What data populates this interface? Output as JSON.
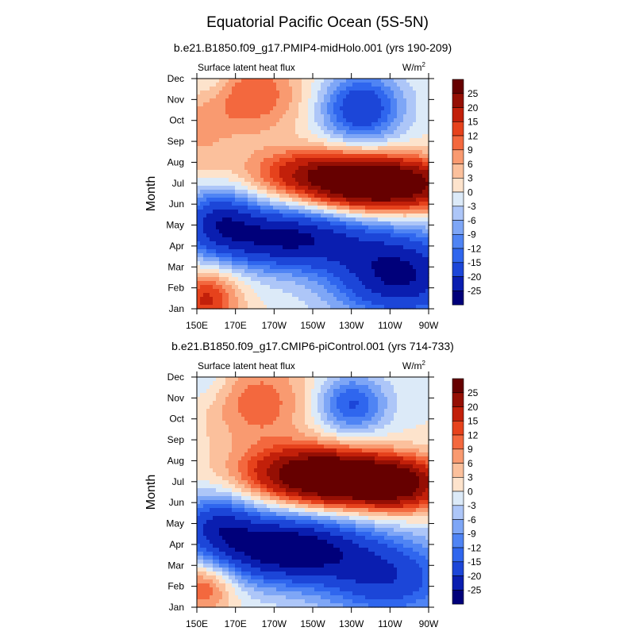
{
  "figure": {
    "title": "Equatorial Pacific Ocean (5S-5N)"
  },
  "chart_data": [
    {
      "type": "heatmap",
      "title": "b.e21.B1850.f09_g17.PMIP4-midHolo.001 (yrs 190-209)",
      "left_label": "Surface latent heat flux",
      "units_base": "W/m",
      "units_exp": "2",
      "ylabel": "Month",
      "xlabel": "",
      "x_ticks": [
        "150E",
        "170E",
        "170W",
        "150W",
        "130W",
        "110W",
        "90W"
      ],
      "x_lon": [
        150,
        170,
        190,
        210,
        230,
        250,
        270
      ],
      "xlim": [
        150,
        270
      ],
      "y_ticks": [
        "Jan",
        "Feb",
        "Mar",
        "Apr",
        "May",
        "Jun",
        "Jul",
        "Aug",
        "Sep",
        "Oct",
        "Nov",
        "Dec"
      ],
      "ylim": [
        1,
        12
      ],
      "colorbar_levels": [
        -25,
        -20,
        -15,
        -12,
        -9,
        -6,
        -3,
        0,
        3,
        6,
        9,
        12,
        15,
        20,
        25
      ],
      "colorbar_labels": [
        "25",
        "20",
        "15",
        "12",
        "9",
        "6",
        "3",
        "0",
        "-3",
        "-6",
        "-9",
        "-12",
        "-15",
        "-20",
        "-25"
      ],
      "features": [
        {
          "lon": 245,
          "mon": 6.9,
          "amp": 36,
          "slon": 28,
          "smon": 0.9
        },
        {
          "lon": 212,
          "mon": 7.6,
          "amp": 14,
          "slon": 26,
          "smon": 0.8
        },
        {
          "lon": 178,
          "mon": 11.2,
          "amp": 12,
          "slon": 20,
          "smon": 1.4
        },
        {
          "lon": 150,
          "mon": 9.5,
          "amp": 5,
          "slon": 12,
          "smon": 2.0
        },
        {
          "lon": 155,
          "mon": 1.5,
          "amp": 16,
          "slon": 12,
          "smon": 1.0
        },
        {
          "lon": 235,
          "mon": 10.6,
          "amp": -20,
          "slon": 15,
          "smon": 1.2
        },
        {
          "lon": 155,
          "mon": 12.0,
          "amp": -7,
          "slon": 10,
          "smon": 1.0
        },
        {
          "lon": 195,
          "mon": 4.4,
          "amp": -26,
          "slon": 30,
          "smon": 1.1
        },
        {
          "lon": 255,
          "mon": 2.6,
          "amp": -26,
          "slon": 25,
          "smon": 1.5
        },
        {
          "lon": 160,
          "mon": 5.4,
          "amp": -15,
          "slon": 14,
          "smon": 1.1
        }
      ]
    },
    {
      "type": "heatmap",
      "title": "b.e21.B1850.f09_g17.CMIP6-piControl.001 (yrs 714-733)",
      "left_label": "Surface latent heat flux",
      "units_base": "W/m",
      "units_exp": "2",
      "ylabel": "Month",
      "xlabel": "",
      "x_ticks": [
        "150E",
        "170E",
        "170W",
        "150W",
        "130W",
        "110W",
        "90W"
      ],
      "x_lon": [
        150,
        170,
        190,
        210,
        230,
        250,
        270
      ],
      "xlim": [
        150,
        270
      ],
      "y_ticks": [
        "Jan",
        "Feb",
        "Mar",
        "Apr",
        "May",
        "Jun",
        "Jul",
        "Aug",
        "Sep",
        "Oct",
        "Nov",
        "Dec"
      ],
      "ylim": [
        1,
        12
      ],
      "colorbar_levels": [
        -25,
        -20,
        -15,
        -12,
        -9,
        -6,
        -3,
        0,
        3,
        6,
        9,
        12,
        15,
        20,
        25
      ],
      "colorbar_labels": [
        "25",
        "20",
        "15",
        "12",
        "9",
        "6",
        "3",
        "0",
        "-3",
        "-6",
        "-9",
        "-12",
        "-15",
        "-20",
        "-25"
      ],
      "features": [
        {
          "lon": 232,
          "mon": 7.0,
          "amp": 34,
          "slon": 28,
          "smon": 0.9
        },
        {
          "lon": 205,
          "mon": 7.6,
          "amp": 16,
          "slon": 24,
          "smon": 0.9
        },
        {
          "lon": 258,
          "mon": 6.7,
          "amp": 10,
          "slon": 14,
          "smon": 0.9
        },
        {
          "lon": 182,
          "mon": 10.8,
          "amp": 11,
          "slon": 20,
          "smon": 1.5
        },
        {
          "lon": 153,
          "mon": 2.0,
          "amp": 14,
          "slon": 12,
          "smon": 0.9
        },
        {
          "lon": 230,
          "mon": 10.7,
          "amp": -16,
          "slon": 13,
          "smon": 1.0
        },
        {
          "lon": 155,
          "mon": 12.0,
          "amp": -5,
          "slon": 10,
          "smon": 1.0
        },
        {
          "lon": 195,
          "mon": 3.8,
          "amp": -30,
          "slon": 30,
          "smon": 1.2
        },
        {
          "lon": 250,
          "mon": 2.3,
          "amp": -18,
          "slon": 25,
          "smon": 1.4
        },
        {
          "lon": 160,
          "mon": 5.1,
          "amp": -14,
          "slon": 14,
          "smon": 1.0
        }
      ]
    }
  ],
  "colors": {
    "palette": [
      "#00007a",
      "#0a1eb0",
      "#1c46d8",
      "#2f66ee",
      "#4f84f4",
      "#7ea6f6",
      "#adc6f8",
      "#dceaf8",
      "#fde3cc",
      "#fbc09c",
      "#f99a70",
      "#f3683e",
      "#e6421c",
      "#c2200a",
      "#950f04",
      "#660000"
    ],
    "line": "#000000"
  }
}
